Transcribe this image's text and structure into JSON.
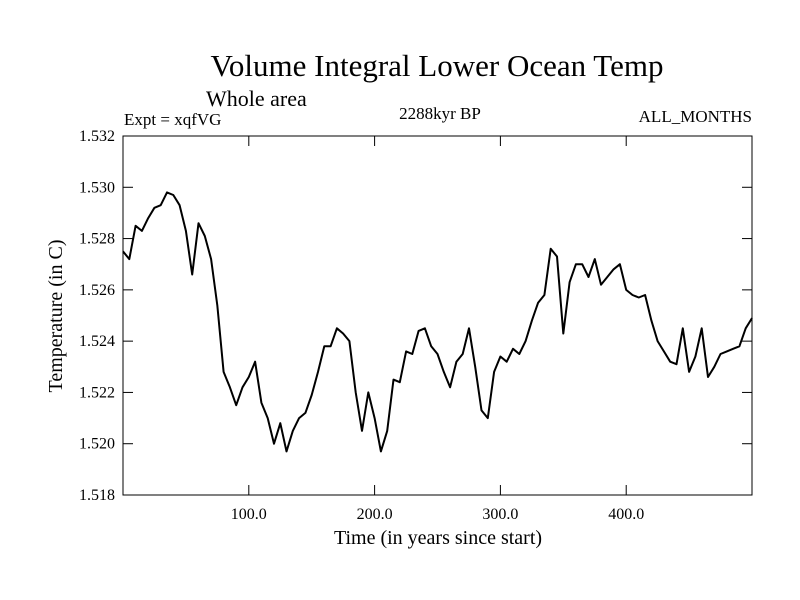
{
  "chart_data": {
    "type": "line",
    "title": "Volume Integral Lower Ocean Temp",
    "subtitle": "Whole area",
    "left_note": "Expt = xqfVG",
    "center_note": "2288kyr BP",
    "right_note": "ALL_MONTHS",
    "xlabel": "Time (in years since start)",
    "ylabel": "Temperature (in C)",
    "xlim": [
      0,
      500
    ],
    "ylim": [
      1.518,
      1.532
    ],
    "xticks": [
      100,
      200,
      300,
      400
    ],
    "xtick_labels": [
      "100.0",
      "200.0",
      "300.0",
      "400.0"
    ],
    "yticks": [
      1.518,
      1.52,
      1.522,
      1.524,
      1.526,
      1.528,
      1.53,
      1.532
    ],
    "ytick_labels": [
      "1.518",
      "1.520",
      "1.522",
      "1.524",
      "1.526",
      "1.528",
      "1.530",
      "1.532"
    ],
    "grid": false,
    "series": [
      {
        "name": "Temperature",
        "x": [
          0,
          5,
          10,
          15,
          20,
          25,
          30,
          35,
          40,
          45,
          50,
          55,
          60,
          65,
          70,
          75,
          80,
          85,
          90,
          95,
          100,
          105,
          110,
          115,
          120,
          125,
          130,
          135,
          140,
          145,
          150,
          155,
          160,
          165,
          170,
          175,
          180,
          185,
          190,
          195,
          200,
          205,
          210,
          215,
          220,
          225,
          230,
          235,
          240,
          245,
          250,
          255,
          260,
          265,
          270,
          275,
          280,
          285,
          290,
          295,
          300,
          305,
          310,
          315,
          320,
          325,
          330,
          335,
          340,
          345,
          350,
          355,
          360,
          365,
          370,
          375,
          380,
          385,
          390,
          395,
          400,
          405,
          410,
          415,
          420,
          425,
          430,
          435,
          440,
          445,
          450,
          455,
          460,
          465,
          470,
          475,
          480,
          485,
          490,
          495,
          500
        ],
        "values": [
          1.5275,
          1.5272,
          1.5285,
          1.5283,
          1.5288,
          1.5292,
          1.5293,
          1.5298,
          1.5297,
          1.5293,
          1.5283,
          1.5266,
          1.5286,
          1.5281,
          1.5272,
          1.5254,
          1.5228,
          1.5222,
          1.5215,
          1.5222,
          1.5226,
          1.5232,
          1.5216,
          1.521,
          1.52,
          1.5208,
          1.5197,
          1.5205,
          1.521,
          1.5212,
          1.5219,
          1.5228,
          1.5238,
          1.5238,
          1.5245,
          1.5243,
          1.524,
          1.522,
          1.5205,
          1.522,
          1.521,
          1.5197,
          1.5205,
          1.5225,
          1.5224,
          1.5236,
          1.5235,
          1.5244,
          1.5245,
          1.5238,
          1.5235,
          1.5228,
          1.5222,
          1.5232,
          1.5235,
          1.5245,
          1.523,
          1.5213,
          1.521,
          1.5228,
          1.5234,
          1.5232,
          1.5237,
          1.5235,
          1.524,
          1.5248,
          1.5255,
          1.5258,
          1.5276,
          1.5273,
          1.5243,
          1.5263,
          1.527,
          1.527,
          1.5265,
          1.5272,
          1.5262,
          1.5265,
          1.5268,
          1.527,
          1.526,
          1.5258,
          1.5257,
          1.5258,
          1.5248,
          1.524,
          1.5236,
          1.5232,
          1.5231,
          1.5245,
          1.5228,
          1.5234,
          1.5245,
          1.5226,
          1.523,
          1.5235,
          1.5236,
          1.5237,
          1.5238,
          1.5245,
          1.5249
        ]
      }
    ]
  }
}
